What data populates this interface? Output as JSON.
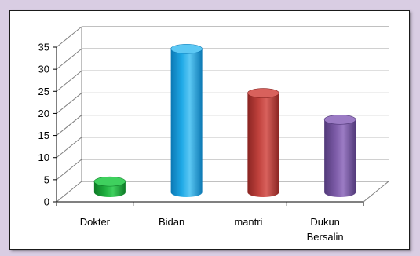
{
  "chart_data": {
    "type": "bar",
    "categories": [
      "Dokter",
      "Bidan",
      "mantri",
      "Dukun Bersalin"
    ],
    "category_lines": [
      [
        "Dokter"
      ],
      [
        "Bidan"
      ],
      [
        "mantri"
      ],
      [
        "Dukun",
        "Bersalin"
      ]
    ],
    "values": [
      3,
      33,
      23,
      17
    ],
    "ylim": [
      0,
      35
    ],
    "yticks": [
      "0",
      "5",
      "10",
      "15",
      "20",
      "25",
      "30",
      "35"
    ],
    "grid": true,
    "title": "",
    "xlabel": "",
    "ylabel": ""
  },
  "colors": {
    "bars": [
      "#1fae3e",
      "#1fa9e6",
      "#c0413c",
      "#7b5aa6"
    ],
    "bars_top": [
      "#3fd05e",
      "#5cc8f4",
      "#d8615c",
      "#9b7bc4"
    ],
    "bars_dark": [
      "#0d7a26",
      "#0b78b4",
      "#8a2522",
      "#523a7a"
    ],
    "grid": "#808080",
    "background": "#d9cde3"
  }
}
